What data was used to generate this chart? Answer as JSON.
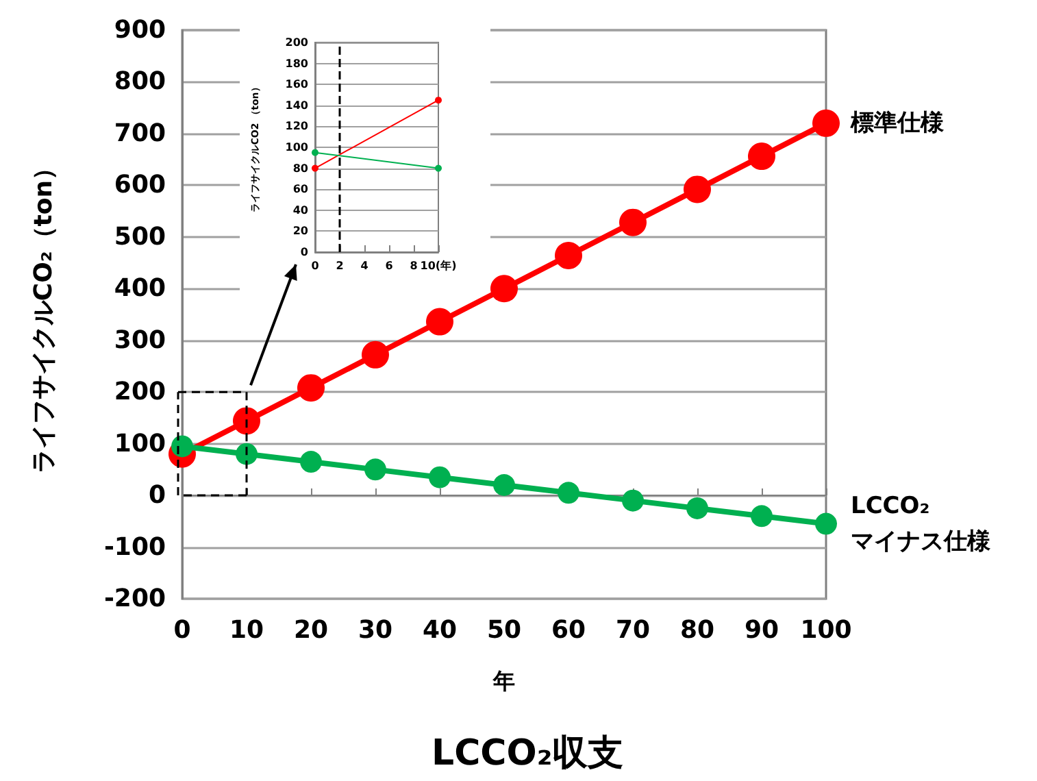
{
  "chart_data": [
    {
      "type": "line",
      "title": "LCCO₂収支",
      "xlabel": "年",
      "ylabel": "ライフサイクルCO₂（ton）",
      "x": [
        0,
        10,
        20,
        30,
        40,
        50,
        60,
        70,
        80,
        90,
        100
      ],
      "series": [
        {
          "name": "標準仕様",
          "color": "#ff0000",
          "values": [
            80,
            144,
            208,
            272,
            336,
            400,
            464,
            528,
            592,
            656,
            720
          ]
        },
        {
          "name": "LCCO₂\nマイナス仕様",
          "color": "#00b050",
          "values": [
            95,
            80,
            65,
            50,
            35,
            20,
            5,
            -10,
            -25,
            -40,
            -55
          ]
        }
      ],
      "xlim": [
        0,
        100
      ],
      "xticks": [
        0,
        10,
        20,
        30,
        40,
        50,
        60,
        70,
        80,
        90,
        100
      ],
      "ylim": [
        -200,
        900
      ],
      "yticks": [
        -200,
        -100,
        0,
        100,
        200,
        300,
        400,
        500,
        600,
        700,
        800,
        900
      ],
      "grid": "y",
      "marker": "circle",
      "line_style": "solid"
    },
    {
      "type": "line",
      "ylabel": "ライフサイクルCO2 （ton）",
      "x": [
        0,
        10
      ],
      "series": [
        {
          "color": "#ff0000",
          "values": [
            80,
            145
          ]
        },
        {
          "color": "#00b050",
          "values": [
            95,
            80
          ]
        }
      ],
      "xlim": [
        0,
        10
      ],
      "xticks": [
        0,
        2,
        4,
        6,
        8,
        {
          "value": 10,
          "label": "10(年)"
        }
      ],
      "ylim": [
        0,
        200
      ],
      "yticks": [
        0,
        20,
        40,
        60,
        80,
        100,
        120,
        140,
        160,
        180,
        200
      ],
      "grid": "y",
      "marker": "circle",
      "line_style": "solid",
      "ref_lines": [
        {
          "axis": "x",
          "value": 2,
          "color": "#000000",
          "line_style": "dashed"
        }
      ]
    }
  ]
}
